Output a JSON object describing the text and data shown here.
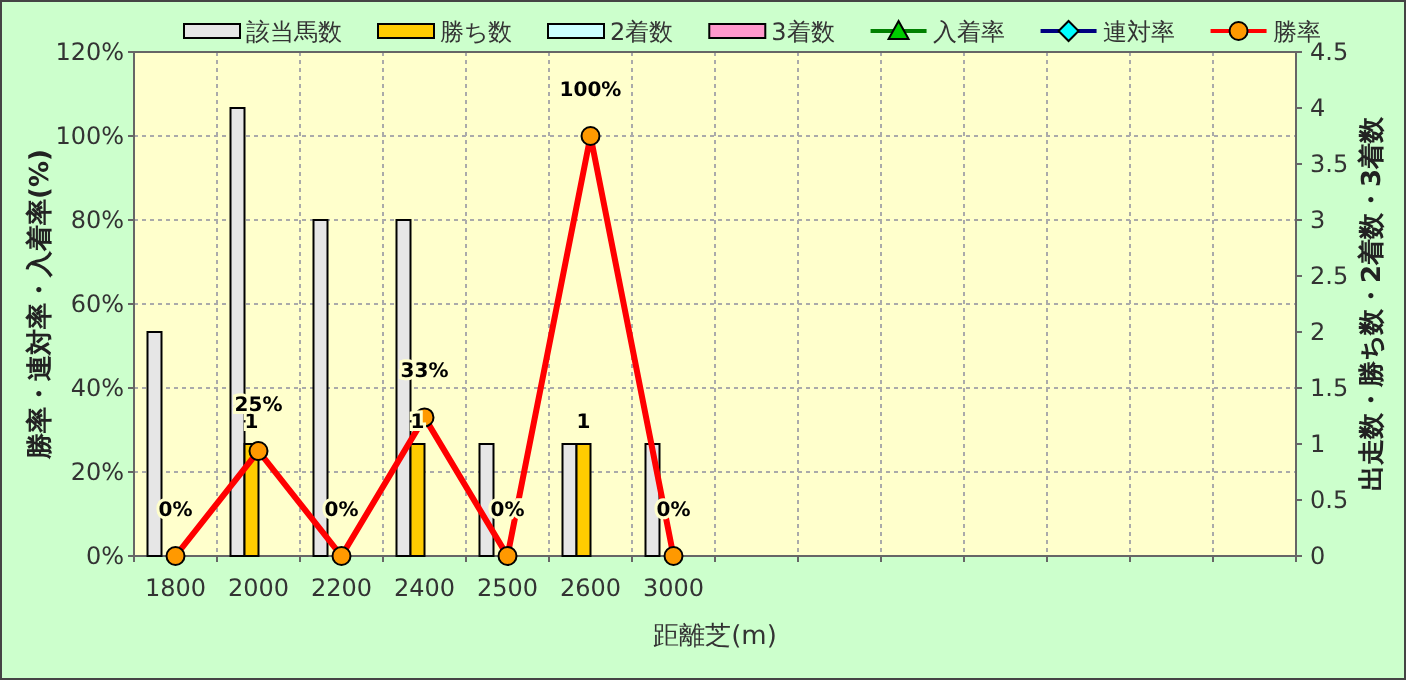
{
  "chart_data": {
    "type": "bar",
    "xlabel": "距離芝(m)",
    "ylabel": "勝率・連対率・入着率(%)",
    "y2label": "出走数・勝ち数・2着数・3着数",
    "categories": [
      "1800",
      "2000",
      "2200",
      "2400",
      "2500",
      "2600",
      "3000",
      null,
      null,
      null,
      null,
      null,
      null,
      null
    ],
    "series": [
      {
        "name": "該当馬数",
        "axis": "y2",
        "color": "#e6e6e6",
        "values": [
          2,
          4,
          3,
          3,
          1,
          1,
          1,
          null,
          null,
          null,
          null,
          null,
          null,
          null
        ]
      },
      {
        "name": "勝ち数",
        "axis": "y2",
        "color": "#ffcc00",
        "values": [
          0,
          1,
          0,
          1,
          0,
          1,
          0,
          null,
          null,
          null,
          null,
          null,
          null,
          null
        ],
        "value_labels": [
          null,
          "1",
          null,
          "1",
          null,
          "1",
          null,
          null,
          null,
          null,
          null,
          null,
          null,
          null
        ]
      },
      {
        "name": "2着数",
        "axis": "y2",
        "color": "#ccffff",
        "values": [
          0,
          0,
          0,
          0,
          0,
          0,
          0,
          null,
          null,
          null,
          null,
          null,
          null,
          null
        ]
      },
      {
        "name": "3着数",
        "axis": "y2",
        "color": "#ff99cc",
        "values": [
          0,
          0,
          0,
          0,
          0,
          0,
          0,
          null,
          null,
          null,
          null,
          null,
          null,
          null
        ]
      },
      {
        "name": "入着率",
        "type": "line",
        "color": "#008000",
        "marker": "triangle",
        "values": [
          null,
          null,
          null,
          null,
          null,
          null,
          null,
          null,
          null,
          null,
          null,
          null,
          null,
          null
        ]
      },
      {
        "name": "連対率",
        "type": "line",
        "color": "#000080",
        "marker": "diamond",
        "values": [
          null,
          null,
          null,
          null,
          null,
          null,
          null,
          null,
          null,
          null,
          null,
          null,
          null,
          null
        ]
      },
      {
        "name": "勝率",
        "type": "line",
        "color": "#ff0000",
        "marker": "circle",
        "values": [
          0,
          25,
          0,
          33,
          0,
          100,
          0,
          null,
          null,
          null,
          null,
          null,
          null,
          null
        ],
        "value_labels": [
          "0%",
          "25%",
          "0%",
          "33%",
          "0%",
          "100%",
          "0%",
          null,
          null,
          null,
          null,
          null,
          null,
          null
        ]
      }
    ],
    "ylim": [
      0,
      120
    ],
    "yticks": [
      {
        "value": 0,
        "label": "0%"
      },
      {
        "value": 20,
        "label": "20%"
      },
      {
        "value": 40,
        "label": "40%"
      },
      {
        "value": 60,
        "label": "60%"
      },
      {
        "value": 80,
        "label": "80%"
      },
      {
        "value": 100,
        "label": "100%"
      },
      {
        "value": 120,
        "label": "120%"
      }
    ],
    "y2lim": [
      0,
      4.5
    ],
    "y2ticks": [
      0,
      0.5,
      1,
      1.5,
      2,
      2.5,
      3,
      3.5,
      4,
      4.5
    ],
    "grid": true,
    "legend": "top"
  }
}
